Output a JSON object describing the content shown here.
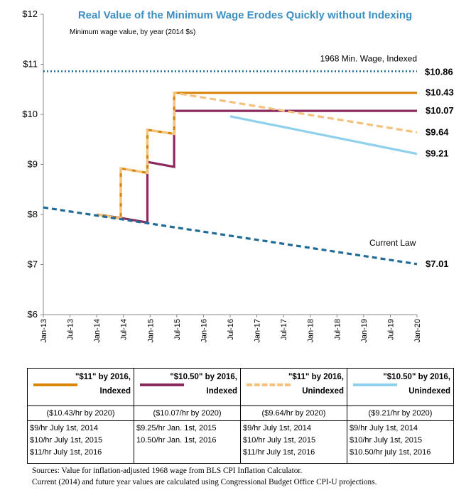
{
  "chart_data": {
    "type": "line",
    "title": "Real Value of the Minimum Wage Erodes Quickly without Indexing",
    "subtitle": "Minimum wage value, by year (2014 $s)",
    "ylim": [
      6,
      12
    ],
    "yticks": [
      "$6",
      "$7",
      "$8",
      "$9",
      "$10",
      "$11",
      "$12"
    ],
    "categories": [
      "Jan-13",
      "Jul-13",
      "Jan-14",
      "Jul-14",
      "Jan-15",
      "Jul-15",
      "Jan-16",
      "Jul-16",
      "Jan-17",
      "Jul-17",
      "Jan-18",
      "Jul-18",
      "Jan-19",
      "Jul-19",
      "Jan-20"
    ],
    "reference_line": {
      "label": "1968 Min. Wage, Indexed",
      "value": 10.86,
      "value_label": "$10.86",
      "color": "#1f6b96"
    },
    "series": [
      {
        "name": "Current Law",
        "color": "#1f6b96",
        "style": "dashed",
        "end_label": "$7.01",
        "points": [
          [
            0,
            8.14
          ],
          [
            14,
            7.01
          ]
        ]
      },
      {
        "name": "\"$11\" by 2016, Indexed",
        "color": "#d9850a",
        "style": "solid",
        "end_label": "$10.43",
        "points": [
          [
            2,
            8.0
          ],
          [
            2.9,
            7.92
          ],
          [
            2.9,
            8.92
          ],
          [
            3.9,
            8.83
          ],
          [
            3.9,
            9.69
          ],
          [
            4.9,
            9.61
          ],
          [
            4.9,
            10.43
          ],
          [
            14,
            10.43
          ]
        ]
      },
      {
        "name": "\"$10.50\" by 2016, Indexed",
        "color": "#8c2a5e",
        "style": "solid",
        "end_label": "$10.07",
        "points": [
          [
            2,
            8.0
          ],
          [
            3,
            7.92
          ],
          [
            3.9,
            7.84
          ],
          [
            3.9,
            9.05
          ],
          [
            4.9,
            8.95
          ],
          [
            4.9,
            10.07
          ],
          [
            14,
            10.07
          ]
        ]
      },
      {
        "name": "\"$11\" by 2016, Unindexed",
        "color": "#f5c27e",
        "style": "dashed",
        "end_label": "$9.64",
        "points": [
          [
            2,
            8.0
          ],
          [
            2.9,
            7.92
          ],
          [
            2.9,
            8.92
          ],
          [
            3.9,
            8.83
          ],
          [
            3.9,
            9.69
          ],
          [
            4.9,
            9.61
          ],
          [
            4.9,
            10.43
          ],
          [
            14,
            9.64
          ]
        ]
      },
      {
        "name": "\"$10.50\" by 2016, Unindexed",
        "color": "#8fd0ee",
        "style": "solid",
        "end_label": "$9.21",
        "points": [
          [
            7,
            9.96
          ],
          [
            14,
            9.21
          ]
        ]
      }
    ]
  },
  "legend": [
    {
      "name": "\"$11\" by 2016,",
      "type": "Indexed",
      "note": "($10.43/hr by 2020)",
      "color": "#d9850a",
      "style": "solid",
      "steps": [
        "$9/hr July 1st, 2014",
        "$10/hr July 1st, 2015",
        "$11/hr July 1st, 2016"
      ]
    },
    {
      "name": "\"$10.50\" by 2016,",
      "type": "Indexed",
      "note": "($10.07/hr by 2020)",
      "color": "#8c2a5e",
      "style": "solid",
      "steps": [
        "$9.25/hr Jan. 1st, 2015",
        "10.50/hr Jan. 1st, 2016",
        ""
      ]
    },
    {
      "name": "\"$11\" by 2016,",
      "type": "Unindexed",
      "note": "($9.64/hr by 2020)",
      "color": "#f5c27e",
      "style": "dashed",
      "steps": [
        "$9/hr July 1st, 2014",
        "$10/hr July 1st, 2015",
        "$11/hr July 1st, 2016"
      ]
    },
    {
      "name": "\"$10.50\" by 2016,",
      "type": "Unindexed",
      "note": "($9.21/hr by 2020)",
      "color": "#8fd0ee",
      "style": "solid",
      "steps": [
        "$9/hr July 1st, 2014",
        "$10/hr July 1st, 2015",
        "$10.50/hr july 1st, 2016"
      ]
    }
  ],
  "sources": {
    "line1": "Sources: Value for inflation-adjusted 1968 wage from BLS CPI Inflation Calculator.",
    "line2": "Current (2014) and future year values are calculated using Congressional Budget Office CPI-U projections."
  }
}
